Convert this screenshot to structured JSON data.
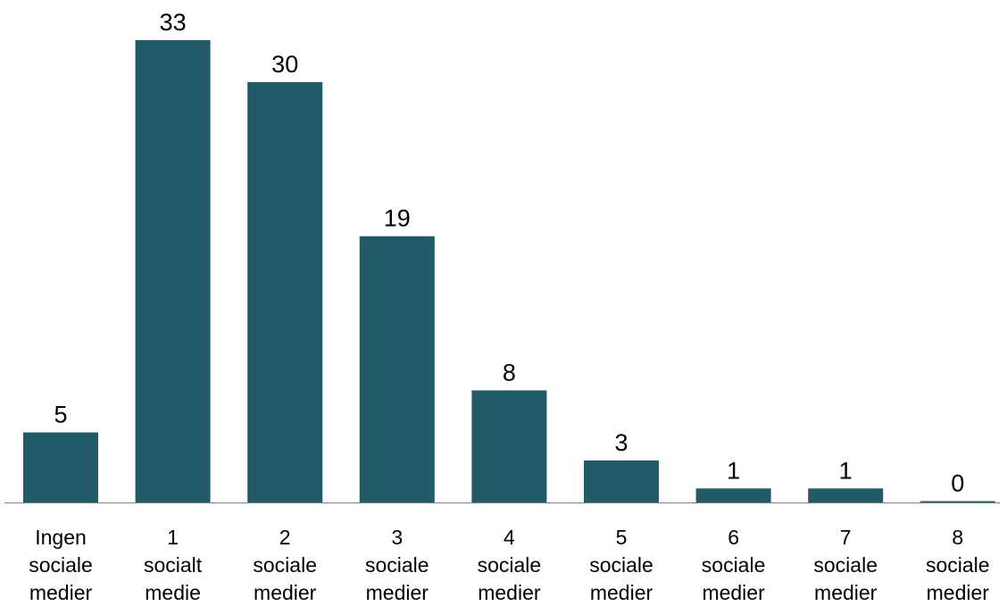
{
  "chart_data": {
    "type": "bar",
    "title": "",
    "xlabel": "",
    "ylabel": "",
    "categories": [
      [
        "Ingen",
        "sociale",
        "medier"
      ],
      [
        "1",
        "socialt",
        "medie"
      ],
      [
        "2",
        "sociale",
        "medier"
      ],
      [
        "3",
        "sociale",
        "medier"
      ],
      [
        "4",
        "sociale",
        "medier"
      ],
      [
        "5",
        "sociale",
        "medier"
      ],
      [
        "6",
        "sociale",
        "medier"
      ],
      [
        "7",
        "sociale",
        "medier"
      ],
      [
        "8",
        "sociale",
        "medier"
      ]
    ],
    "values": [
      5,
      33,
      30,
      19,
      8,
      3,
      1,
      1,
      0
    ],
    "data_labels": [
      "5",
      "33",
      "30",
      "19",
      "8",
      "3",
      "1",
      "1",
      "0"
    ],
    "ylim": [
      0,
      36
    ],
    "grid": false,
    "legend": "none",
    "bar_color": "#235a67",
    "axis_color": "#7f7f7f"
  }
}
